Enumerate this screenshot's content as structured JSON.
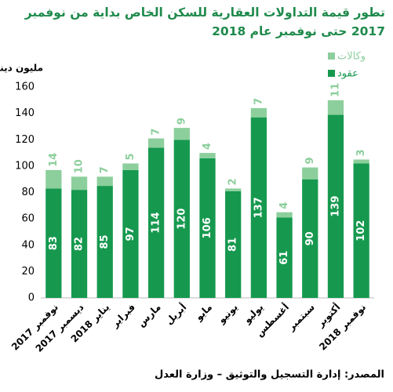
{
  "chart_data": {
    "type": "stacked-bar",
    "title": "تطور قيمة التداولات العقارية للسكن الخاص بداية من نوفمبر 2017 حتى نوفمبر عام 2018",
    "y_label": "مليون دينار كويتي",
    "source": "المصدر: إدارة التسجيل والتوثيق – وزارة العدل",
    "categories": [
      "نوفمبر 2017",
      "ديسمبر 2017",
      "يناير 2018",
      "فبراير",
      "مارس",
      "أبريل",
      "مايو",
      "يونيو",
      "يوليو",
      "أغسطس",
      "سبتمبر",
      "أكتوبر",
      "نوفمبر 2018"
    ],
    "series": [
      {
        "name": "عقود",
        "color": "#16994f",
        "values": [
          83,
          82,
          85,
          97,
          114,
          120,
          106,
          81,
          137,
          61,
          90,
          139,
          102
        ]
      },
      {
        "name": "وكالات",
        "color": "#8ccf9c",
        "values": [
          14,
          10,
          7,
          5,
          7,
          9,
          4,
          2,
          7,
          4,
          9,
          11,
          3
        ]
      }
    ],
    "ylim": [
      0,
      160
    ],
    "yticks": [
      0,
      20,
      40,
      60,
      80,
      100,
      120,
      140,
      160
    ]
  }
}
